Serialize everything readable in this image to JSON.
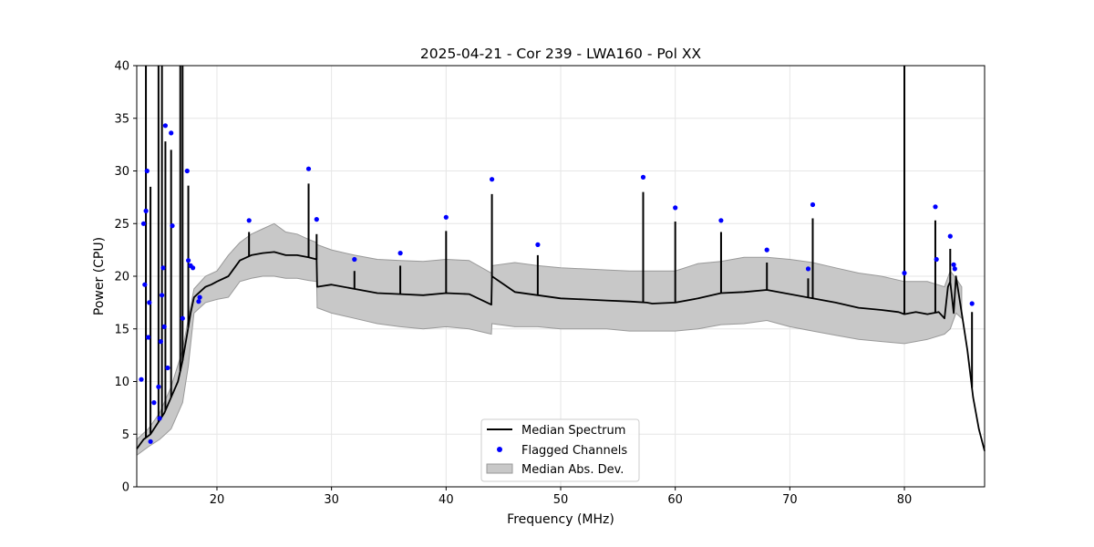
{
  "chart_data": {
    "type": "line",
    "title": "2025-04-21 - Cor 239 - LWA160 - Pol XX",
    "xlabel": "Frequency (MHz)",
    "ylabel": "Power (CPU)",
    "xlim": [
      13.0,
      87.0
    ],
    "ylim": [
      0,
      40
    ],
    "xticks": [
      20,
      30,
      40,
      50,
      60,
      70,
      80
    ],
    "yticks": [
      0,
      5,
      10,
      15,
      20,
      25,
      30,
      35,
      40
    ],
    "grid": true,
    "legend_position": "lower-center",
    "legend": [
      "Median Spectrum",
      "Flagged Channels",
      "Median Abs. Dev."
    ],
    "colors": {
      "median": "#000000",
      "flagged": "#0000ff",
      "mad_fill": "#c8c8c8",
      "mad_edge": "#999999",
      "grid": "#e6e6e6"
    },
    "series": [
      {
        "name": "Median Spectrum",
        "x": [
          13.0,
          13.6,
          14.2,
          14.8,
          15.4,
          16.0,
          16.6,
          17.0,
          17.4,
          17.7,
          18.0,
          18.5,
          19.0,
          19.5,
          20.0,
          21.0,
          22.0,
          23.0,
          24.0,
          25.0,
          26.0,
          27.0,
          28.0,
          28.7,
          28.75,
          30.0,
          32.0,
          34.0,
          36.0,
          38.0,
          40.0,
          42.0,
          43.95,
          44.0,
          46.0,
          48.0,
          50.0,
          52.0,
          54.0,
          56.0,
          57.5,
          58.0,
          60.0,
          62.0,
          64.0,
          66.0,
          68.0,
          70.0,
          72.0,
          74.0,
          76.0,
          78.0,
          79.5,
          80.0,
          81.0,
          82.0,
          83.0,
          83.5,
          83.8,
          84.0,
          84.3,
          84.5,
          85.0,
          85.5,
          86.0,
          86.5,
          87.0
        ],
        "values": [
          3.6,
          4.5,
          5.0,
          6.0,
          7.0,
          8.5,
          10.0,
          12.0,
          14.5,
          16.5,
          18.0,
          18.5,
          19.0,
          19.2,
          19.5,
          20.0,
          21.5,
          22.0,
          22.2,
          22.3,
          22.0,
          22.0,
          21.8,
          21.6,
          19.0,
          19.2,
          18.8,
          18.4,
          18.3,
          18.2,
          18.4,
          18.3,
          17.3,
          20.0,
          18.5,
          18.2,
          17.9,
          17.8,
          17.7,
          17.6,
          17.5,
          17.4,
          17.5,
          17.9,
          18.4,
          18.5,
          18.7,
          18.3,
          17.9,
          17.5,
          17.0,
          16.8,
          16.6,
          16.4,
          16.6,
          16.4,
          16.6,
          16.0,
          19.0,
          19.5,
          16.5,
          20.0,
          16.5,
          13.0,
          8.5,
          5.5,
          3.4
        ]
      },
      {
        "name": "Median Abs. Dev.",
        "x": [
          13.0,
          14.0,
          15.0,
          16.0,
          17.0,
          17.5,
          18.0,
          19.0,
          20.0,
          21.0,
          22.0,
          23.0,
          24.0,
          25.0,
          26.0,
          27.0,
          28.0,
          28.7,
          28.75,
          30.0,
          32.0,
          34.0,
          36.0,
          38.0,
          40.0,
          42.0,
          43.95,
          44.0,
          46.0,
          48.0,
          50.0,
          52.0,
          54.0,
          56.0,
          58.0,
          60.0,
          62.0,
          64.0,
          66.0,
          68.0,
          70.0,
          72.0,
          74.0,
          76.0,
          78.0,
          80.0,
          82.0,
          83.5,
          84.0,
          84.5,
          85.0
        ],
        "upper": [
          4.5,
          5.5,
          7.0,
          9.5,
          13.0,
          16.0,
          18.8,
          20.0,
          20.5,
          22.0,
          23.2,
          24.0,
          24.5,
          25.0,
          24.2,
          24.0,
          23.5,
          23.2,
          23.0,
          22.5,
          22.0,
          21.6,
          21.5,
          21.4,
          21.6,
          21.5,
          20.3,
          21.0,
          21.3,
          21.0,
          20.8,
          20.7,
          20.6,
          20.5,
          20.5,
          20.5,
          21.2,
          21.4,
          21.8,
          21.8,
          21.6,
          21.3,
          20.8,
          20.3,
          20.0,
          19.5,
          19.5,
          19.0,
          20.5,
          19.8,
          19.0
        ],
        "lower": [
          3.0,
          3.8,
          4.5,
          5.5,
          8.0,
          11.5,
          16.5,
          17.5,
          17.8,
          18.0,
          19.5,
          19.8,
          20.0,
          20.0,
          19.8,
          19.8,
          19.6,
          19.5,
          17.0,
          16.5,
          16.0,
          15.5,
          15.2,
          15.0,
          15.2,
          15.0,
          14.5,
          15.5,
          15.2,
          15.2,
          15.0,
          15.0,
          15.0,
          14.8,
          14.8,
          14.8,
          15.0,
          15.4,
          15.5,
          15.8,
          15.2,
          14.8,
          14.4,
          14.0,
          13.8,
          13.6,
          14.0,
          14.5,
          15.0,
          16.5,
          16.0
        ]
      },
      {
        "name": "Flagged Channels",
        "x": [
          13.4,
          13.6,
          13.7,
          13.8,
          13.9,
          14.0,
          14.1,
          14.2,
          14.5,
          14.9,
          15.0,
          15.1,
          15.2,
          15.3,
          15.4,
          15.5,
          15.7,
          16.0,
          16.1,
          17.0,
          17.4,
          17.5,
          17.7,
          17.9,
          18.4,
          18.5,
          22.8,
          28.0,
          28.7,
          32.0,
          36.0,
          40.0,
          44.0,
          48.0,
          57.2,
          60.0,
          64.0,
          68.0,
          71.6,
          72.0,
          80.0,
          82.7,
          82.8,
          84.0,
          84.3,
          84.4,
          85.9
        ],
        "values": [
          10.2,
          25.0,
          19.2,
          26.2,
          30.0,
          14.2,
          17.5,
          4.3,
          8.0,
          9.5,
          6.5,
          13.8,
          18.2,
          20.8,
          15.2,
          34.3,
          11.3,
          33.6,
          24.8,
          16.0,
          30.0,
          21.5,
          21.0,
          20.8,
          17.6,
          18.0,
          25.3,
          30.2,
          25.4,
          21.6,
          22.2,
          25.6,
          29.2,
          23.0,
          29.4,
          26.5,
          25.3,
          22.5,
          20.7,
          26.8,
          20.3,
          26.6,
          21.6,
          23.8,
          21.1,
          20.7,
          17.4
        ]
      }
    ],
    "spikes": [
      {
        "x": 13.8,
        "value": 40
      },
      {
        "x": 14.2,
        "value": 28.5
      },
      {
        "x": 14.9,
        "value": 40
      },
      {
        "x": 15.2,
        "value": 40
      },
      {
        "x": 15.5,
        "value": 32.8
      },
      {
        "x": 16.0,
        "value": 32.0
      },
      {
        "x": 16.8,
        "value": 40
      },
      {
        "x": 17.0,
        "value": 40
      },
      {
        "x": 17.5,
        "value": 28.6
      },
      {
        "x": 22.8,
        "value": 24.2
      },
      {
        "x": 28.0,
        "value": 28.8
      },
      {
        "x": 28.7,
        "value": 24.0
      },
      {
        "x": 32.0,
        "value": 20.5
      },
      {
        "x": 36.0,
        "value": 21.0
      },
      {
        "x": 40.0,
        "value": 24.3
      },
      {
        "x": 44.0,
        "value": 27.8
      },
      {
        "x": 48.0,
        "value": 22.0
      },
      {
        "x": 57.2,
        "value": 28.0
      },
      {
        "x": 60.0,
        "value": 25.2
      },
      {
        "x": 64.0,
        "value": 24.2
      },
      {
        "x": 68.0,
        "value": 21.3
      },
      {
        "x": 71.6,
        "value": 19.8
      },
      {
        "x": 72.0,
        "value": 25.5
      },
      {
        "x": 80.0,
        "value": 40
      },
      {
        "x": 82.7,
        "value": 25.3
      },
      {
        "x": 84.0,
        "value": 22.6
      },
      {
        "x": 85.9,
        "value": 16.6
      }
    ]
  }
}
